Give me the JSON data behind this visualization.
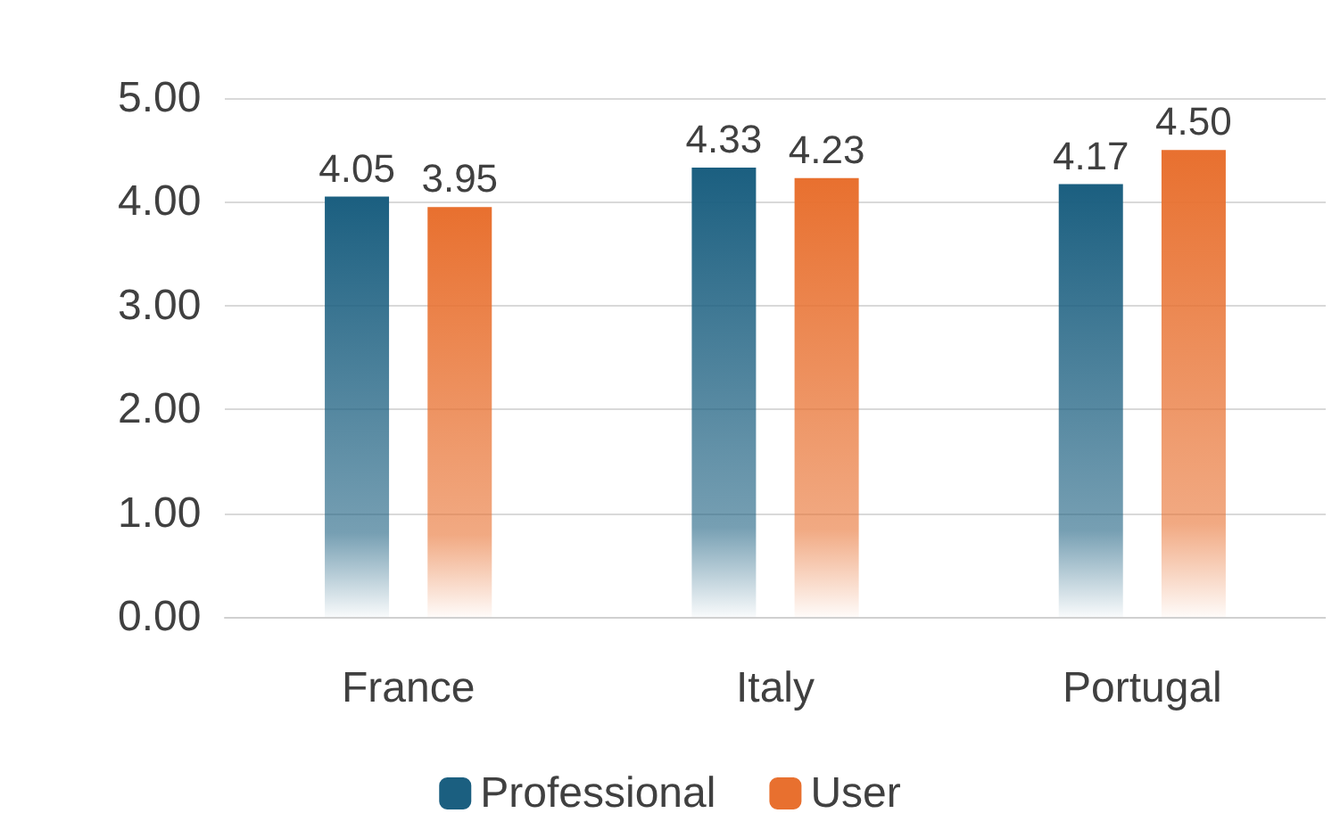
{
  "chart_data": {
    "type": "bar",
    "categories": [
      "France",
      "Italy",
      "Portugal"
    ],
    "series": [
      {
        "name": "Professional",
        "color": "#1b5f80",
        "values": [
          4.05,
          4.33,
          4.17
        ],
        "value_labels": [
          "4.05",
          "4.33",
          "4.17"
        ]
      },
      {
        "name": "User",
        "color": "#e8702f",
        "values": [
          3.95,
          4.23,
          4.5
        ],
        "value_labels": [
          "3.95",
          "4.23",
          "4.50"
        ]
      }
    ],
    "ylim": [
      0,
      5
    ],
    "yticks": [
      {
        "value": 0,
        "label": "0.00"
      },
      {
        "value": 1,
        "label": "1.00"
      },
      {
        "value": 2,
        "label": "2.00"
      },
      {
        "value": 3,
        "label": "3.00"
      },
      {
        "value": 4,
        "label": "4.00"
      },
      {
        "value": 5,
        "label": "5.00"
      }
    ],
    "grid": "y",
    "legend": "bottom"
  }
}
